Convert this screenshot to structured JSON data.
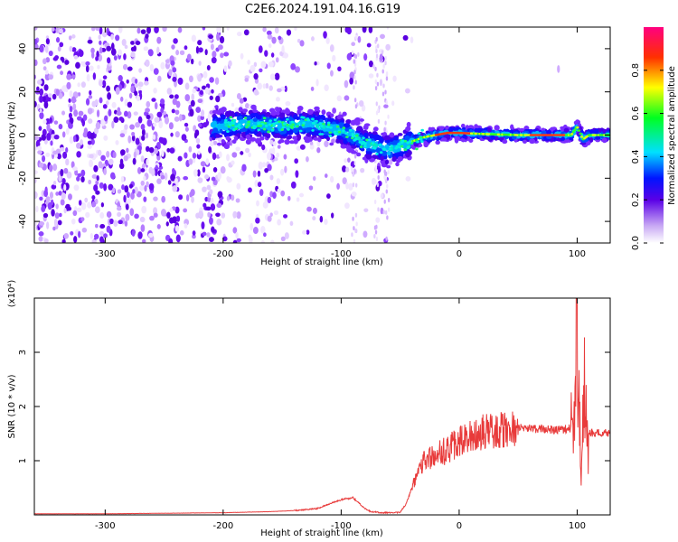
{
  "title": "C2E6.2024.191.04.16.G19",
  "chart_data": [
    {
      "type": "heatmap",
      "xlabel": "Height of straight line (km)",
      "ylabel": "Frequency (Hz)",
      "xlim": [
        -360,
        128
      ],
      "ylim": [
        -50,
        50
      ],
      "xticks": [
        -300,
        -200,
        -100,
        0,
        100
      ],
      "yticks": [
        -40,
        -20,
        0,
        20,
        40
      ],
      "colorbar": {
        "label": "Normalized spectral amplitude",
        "range": [
          0,
          1
        ],
        "ticks": [
          "0.0",
          "0.2",
          "0.4",
          "0.6",
          "0.8"
        ]
      },
      "ridge": {
        "x": [
          -205,
          -190,
          -170,
          -150,
          -130,
          -115,
          -100,
          -90,
          -80,
          -70,
          -60,
          -55,
          -50,
          -40,
          -30,
          -20,
          -10,
          0,
          20,
          50,
          80,
          95,
          100,
          105,
          110,
          128
        ],
        "y": [
          4,
          5,
          5,
          4,
          5,
          4,
          2,
          0,
          -4,
          -5,
          -7,
          -6,
          -5,
          -3,
          -1,
          0,
          1,
          1,
          0.5,
          0,
          0,
          0,
          4,
          -2,
          0,
          0
        ]
      }
    },
    {
      "type": "line",
      "xlabel": "Height of straight line (km)",
      "ylabel": "SNR (10 * v/v)",
      "multiplier": "(x10⁴)",
      "xlim": [
        -360,
        128
      ],
      "ylim": [
        0,
        4
      ],
      "xticks": [
        -300,
        -200,
        -100,
        0,
        100
      ],
      "yticks": [
        1,
        2,
        3
      ],
      "color": "#e83a3a",
      "series": [
        {
          "x": [
            -360,
            -300,
            -250,
            -200,
            -180,
            -160,
            -140,
            -120,
            -110,
            -100,
            -90,
            -80,
            -75,
            -70,
            -65,
            -60,
            -55,
            -50,
            -45,
            -40,
            -35,
            -30,
            -20,
            -10,
            0,
            10,
            20,
            30,
            40,
            50,
            60,
            70,
            80,
            90,
            95,
            98,
            100,
            102,
            104,
            106,
            108,
            112,
            120,
            128
          ],
          "y": [
            0.02,
            0.02,
            0.03,
            0.04,
            0.05,
            0.06,
            0.08,
            0.12,
            0.2,
            0.28,
            0.32,
            0.12,
            0.06,
            0.05,
            0.04,
            0.04,
            0.04,
            0.05,
            0.2,
            0.5,
            0.85,
            1.0,
            1.1,
            1.2,
            1.35,
            1.45,
            1.52,
            1.55,
            1.58,
            1.6,
            1.6,
            1.58,
            1.57,
            1.58,
            1.6,
            1.5,
            3.9,
            1.5,
            0.9,
            3.3,
            1.5,
            1.52,
            1.52,
            1.5
          ]
        }
      ]
    }
  ]
}
